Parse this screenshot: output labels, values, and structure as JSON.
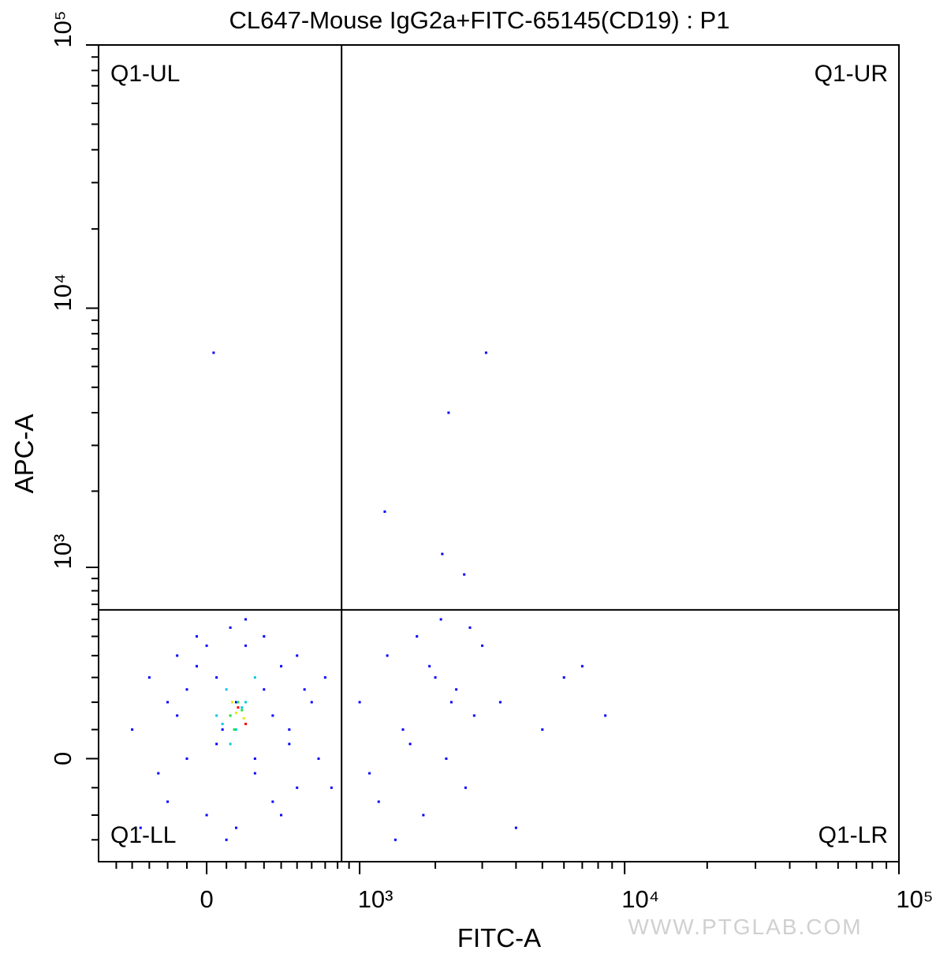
{
  "chart_data": {
    "type": "scatter",
    "title": "CL647-Mouse IgG2a+FITC-65145(CD19) : P1",
    "x_label": "FITC-A",
    "y_label": "APC-A",
    "watermark": "WWW.PTGLAB.COM",
    "xlim": [
      -622,
      100000
    ],
    "ylim": [
      -400,
      100000
    ],
    "xticks": [
      0,
      {
        "value": 1000,
        "label": "10³"
      },
      {
        "value": 10000,
        "label": "10⁴"
      },
      {
        "value": 100000,
        "label": "10⁵"
      }
    ],
    "yticks": [
      0,
      {
        "value": 1000,
        "label": "10³"
      },
      {
        "value": 10000,
        "label": "10⁴"
      },
      {
        "value": 100000,
        "label": "10⁵"
      }
    ],
    "xminorticks": [
      -500,
      -400,
      -300,
      -200,
      -100,
      100,
      200,
      300,
      400,
      500,
      600,
      700,
      800,
      900,
      2000,
      3000,
      4000,
      5000,
      6000,
      7000,
      8000,
      9000,
      20000,
      30000,
      40000,
      50000,
      60000,
      70000,
      80000,
      90000
    ],
    "yminorticks": [
      -300,
      -200,
      -100,
      100,
      200,
      300,
      400,
      500,
      600,
      700,
      800,
      900,
      2000,
      3000,
      4000,
      5000,
      6000,
      7000,
      8000,
      9000,
      20000,
      30000,
      40000,
      50000,
      60000,
      70000,
      80000,
      90000
    ],
    "gate": {
      "x": 834,
      "y": 662
    },
    "quadrants": [
      "Q1-UL",
      "Q1-UR",
      "Q1-LL",
      "Q1-LR"
    ],
    "series": [
      {
        "color": "#0000ff",
        "x": [
          -400,
          -300,
          -250,
          -200,
          -150,
          -100,
          -50,
          0,
          50,
          80,
          120,
          150,
          200,
          250,
          300,
          350,
          400,
          450,
          500,
          600,
          700,
          -350,
          -200,
          -100,
          0,
          100,
          200,
          300,
          400,
          500,
          -150,
          50,
          250,
          450,
          650,
          -50,
          150,
          350,
          550,
          750,
          1000,
          1200,
          1300,
          1500,
          1700,
          1800,
          2000,
          2200,
          2400,
          2600,
          2800,
          3000,
          3500,
          4000,
          5000,
          6000,
          7000,
          8500,
          1100,
          1600,
          2100,
          2700,
          1400,
          1900,
          2300,
          35,
          3100,
          2245,
          1270,
          2125,
          2570
        ],
        "y": [
          100,
          300,
          -50,
          200,
          400,
          0,
          500,
          -200,
          300,
          100,
          550,
          -250,
          450,
          0,
          250,
          -150,
          350,
          50,
          -100,
          200,
          300,
          -250,
          -150,
          250,
          450,
          -300,
          600,
          500,
          -200,
          400,
          150,
          50,
          -50,
          100,
          0,
          350,
          200,
          150,
          250,
          -100,
          200,
          -150,
          400,
          100,
          500,
          -200,
          300,
          0,
          250,
          -100,
          150,
          450,
          200,
          -250,
          100,
          300,
          350,
          150,
          -50,
          50,
          600,
          550,
          -300,
          350,
          200,
          6770,
          6770,
          4000,
          1665,
          1133,
          935
        ]
      },
      {
        "color": "#00c8e6",
        "x": [
          50,
          100,
          150,
          200,
          250,
          120,
          180,
          80
        ],
        "y": [
          150,
          250,
          100,
          200,
          300,
          50,
          180,
          120
        ]
      },
      {
        "color": "#22dd44",
        "x": [
          120,
          160,
          200,
          140,
          180
        ],
        "y": [
          150,
          200,
          120,
          100,
          170
        ]
      },
      {
        "color": "#e6e600",
        "x": [
          150,
          190,
          130
        ],
        "y": [
          160,
          140,
          200
        ]
      },
      {
        "color": "#ff0000",
        "x": [
          160,
          200
        ],
        "y": [
          180,
          120
        ]
      }
    ]
  }
}
